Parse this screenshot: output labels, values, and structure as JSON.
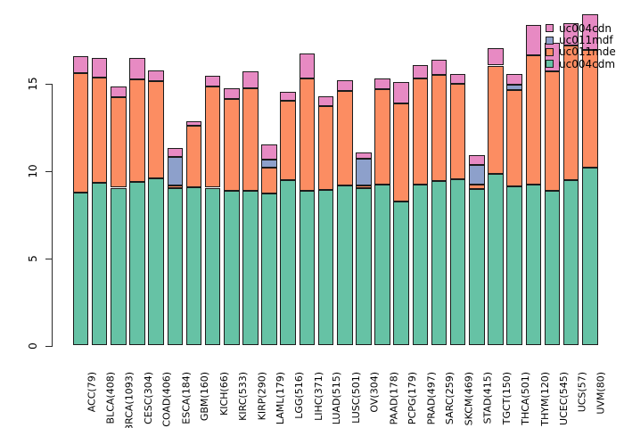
{
  "figure": {
    "background": "#ffffff",
    "title": ""
  },
  "chart_data": {
    "type": "bar",
    "stacked": true,
    "grid": false,
    "legend_position": "top-right",
    "legend_top_to_bottom": [
      "uc004cdn",
      "uc011mdf",
      "uc011mde",
      "uc004cdm"
    ],
    "xlabel": "",
    "ylabel": "",
    "yticks": [
      0,
      5,
      10,
      15
    ],
    "ylim": [
      0,
      19.8
    ],
    "categories": [
      "ACC(79)",
      "BLCA(408)",
      "BRCA(1093)",
      "CESC(304)",
      "COAD(406)",
      "ESCA(184)",
      "GBM(160)",
      "KICH(66)",
      "KIRC(533)",
      "KIRP(290)",
      "LAML(179)",
      "LGG(516)",
      "LIHC(371)",
      "LUAD(515)",
      "LUSC(501)",
      "OV(304)",
      "PAAD(178)",
      "PCPG(179)",
      "PRAD(497)",
      "SARC(259)",
      "SKCM(469)",
      "STAD(415)",
      "TGCT(150)",
      "THCA(501)",
      "THYM(120)",
      "UCEC(545)",
      "UCS(57)",
      "UVM(80)"
    ],
    "series": [
      {
        "name": "uc004cdm",
        "color": "#66C2A5",
        "values": [
          8.76,
          9.29,
          9.03,
          9.34,
          9.58,
          8.98,
          9.07,
          9.03,
          8.83,
          8.83,
          8.69,
          9.46,
          8.83,
          8.9,
          9.17,
          9.03,
          9.2,
          8.25,
          9.23,
          9.41,
          9.54,
          8.95,
          9.83,
          9.12,
          9.2,
          8.86,
          9.46,
          10.17
        ]
      },
      {
        "name": "uc011mde",
        "color": "#FC8D62",
        "values": [
          6.84,
          6.05,
          5.2,
          5.88,
          5.56,
          0.19,
          3.52,
          5.77,
          5.29,
          5.88,
          1.51,
          4.52,
          6.45,
          4.79,
          5.42,
          0.12,
          5.46,
          5.58,
          6.05,
          6.1,
          5.43,
          0.25,
          6.19,
          5.52,
          7.42,
          6.84,
          7.72,
          6.75
        ]
      },
      {
        "name": "uc011mdf",
        "color": "#8DA0CB",
        "values": [
          0,
          0,
          0,
          0,
          0,
          1.6,
          0,
          0,
          0,
          0,
          0.43,
          0,
          0,
          0,
          0,
          1.56,
          0,
          0,
          0,
          0,
          0,
          1.11,
          0,
          0.29,
          0,
          0,
          0,
          0
        ]
      },
      {
        "name": "uc004cdn",
        "color": "#E78AC3",
        "values": [
          0.95,
          1.12,
          0.57,
          1.23,
          0.59,
          0.54,
          0.25,
          0.63,
          0.59,
          0.97,
          0.85,
          0.53,
          1.42,
          0.57,
          0.58,
          0.35,
          0.62,
          1.27,
          0.79,
          0.85,
          0.59,
          0.59,
          0.99,
          0.63,
          1.7,
          1.6,
          1.27,
          2.04
        ]
      }
    ]
  }
}
